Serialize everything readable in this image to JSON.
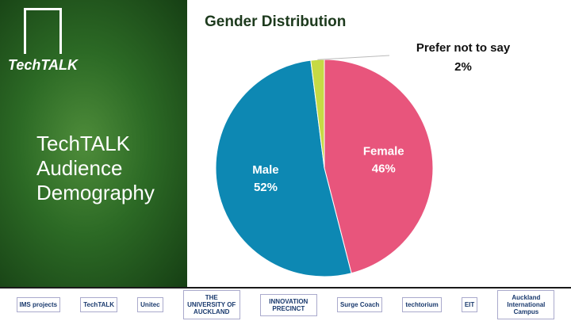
{
  "slide": {
    "logo": "TechTALK",
    "title": "TechTALK Audience Demography"
  },
  "chart_data": {
    "type": "pie",
    "title": "Gender Distribution",
    "categories": [
      "Female",
      "Male",
      "Prefer not to say"
    ],
    "values": [
      46,
      52,
      2
    ],
    "value_labels": [
      "46%",
      "52%",
      "2%"
    ],
    "colors": [
      "#e8557c",
      "#0d88b3",
      "#c6da45"
    ]
  },
  "footer": {
    "logos": [
      "IMS projects",
      "TechTALK",
      "Unitec",
      "THE UNIVERSITY OF AUCKLAND",
      "INNOVATION PRECINCT",
      "Surge Coach",
      "techtorium",
      "EIT",
      "Auckland International Campus"
    ]
  }
}
